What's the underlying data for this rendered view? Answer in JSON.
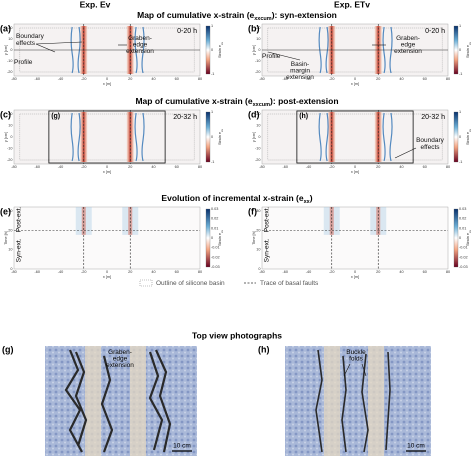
{
  "headers": [
    "Exp. Ev",
    "Exp. ETv"
  ],
  "section_titles": [
    {
      "pre": "Map of cumulative x-strain (e",
      "sub": "xxcum",
      "post": "): syn-extension"
    },
    {
      "pre": "Map of cumulative x-strain (e",
      "sub": "xxcum",
      "post": "): post-extension"
    },
    {
      "pre": "Evolution of incremental x-strain (e",
      "sub": "xx",
      "post": ")"
    },
    {
      "pre": "Top view photographs"
    }
  ],
  "panels": [
    {
      "label": "(a)",
      "time": "0-20 h",
      "annotations": [
        [
          "Boundary",
          "effects"
        ],
        [
          "Profile"
        ],
        [
          "Graben-",
          "edge",
          "extension"
        ]
      ]
    },
    {
      "label": "(b)",
      "time": "0-20 h",
      "annotations": [
        [
          "Graben-",
          "edge",
          "extension"
        ],
        [
          "Profile"
        ],
        [
          "Basin-",
          "margin",
          "extension"
        ]
      ]
    },
    {
      "label": "(c)",
      "time": "20-32 h",
      "inset": "(g)"
    },
    {
      "label": "(d)",
      "time": "20-32 h",
      "inset": "(h)",
      "annotations": [
        [
          "Boundary",
          "effects"
        ]
      ]
    },
    {
      "label": "(e)",
      "phases": [
        "Post-ext.",
        "Syn-ext."
      ]
    },
    {
      "label": "(f)",
      "phases": [
        "Post-ext.",
        "Syn-ext."
      ]
    },
    {
      "label": "(g)",
      "annotations": [
        [
          "Graben-",
          "edge",
          "extension"
        ]
      ],
      "scale": "10 cm"
    },
    {
      "label": "(h)",
      "annotations": [
        [
          "Buckle",
          "folds"
        ]
      ],
      "scale": "10 cm"
    }
  ],
  "axes": {
    "x_ticks": [
      "-80",
      "-60",
      "-40",
      "-20",
      "0",
      "20",
      "40",
      "60",
      "80"
    ],
    "x_label": "x [m]",
    "y_ticks": [
      "20",
      "10",
      "0",
      "-10",
      "-20"
    ],
    "y_label": "y [cm]",
    "time_ticks": [
      "30",
      "20",
      "10",
      "0"
    ],
    "time_label": "Time [h]",
    "cbar_label": {
      "pre": "Strain e",
      "sub": "xx"
    },
    "cum_cbar_ticks": [
      "1",
      "0",
      "-1"
    ],
    "inc_cbar_ticks": [
      "0.03",
      "0.02",
      "0.01",
      "0",
      "-0.01",
      "-0.02",
      "-0.03"
    ]
  },
  "legend": [
    "Outline of silicone basin",
    "Trace of basal faults"
  ]
}
